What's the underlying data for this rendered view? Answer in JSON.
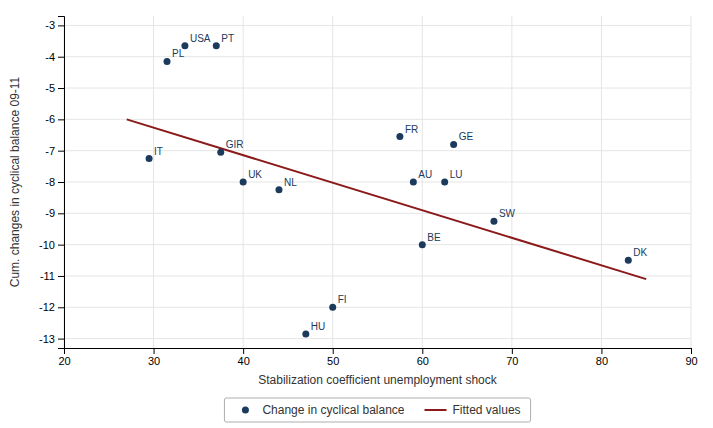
{
  "chart_data": {
    "type": "scatter",
    "xlabel": "Stabilization coefficient unemployment shock",
    "ylabel": "Cum. changes in cyclical balance 09-11",
    "series": [
      {
        "name": "Change in cyclical balance",
        "type": "scatter",
        "marker": "circle",
        "color": "#1b3a5c",
        "labels": [
          "USA",
          "PT",
          "PL",
          "IT",
          "GIR",
          "FR",
          "GE",
          "UK",
          "NL",
          "AU",
          "LU",
          "SW",
          "BE",
          "DK",
          "FI",
          "HU"
        ],
        "x": [
          33.5,
          37.0,
          31.5,
          29.5,
          37.5,
          57.5,
          63.5,
          40.0,
          44.0,
          59.0,
          62.5,
          68.0,
          60.0,
          83.0,
          50.0,
          47.0
        ],
        "values": [
          -3.65,
          -3.65,
          -4.15,
          -7.25,
          -7.05,
          -6.55,
          -6.8,
          -8.0,
          -8.25,
          -8.0,
          -8.0,
          -9.25,
          -10.0,
          -10.5,
          -12.0,
          -12.85
        ]
      },
      {
        "name": "Fitted values",
        "type": "line",
        "line_style": "solid",
        "color": "#8b1a1a",
        "x": [
          27,
          85
        ],
        "values": [
          -6.0,
          -11.1
        ]
      }
    ],
    "xlim": [
      20,
      90
    ],
    "ylim": [
      -13.3,
      -2.7
    ],
    "xticks": [
      20,
      30,
      40,
      50,
      60,
      70,
      80,
      90
    ],
    "yticks": [
      -13,
      -12,
      -11,
      -10,
      -9,
      -8,
      -7,
      -6,
      -5,
      -4,
      -3
    ],
    "grid": true,
    "legend": "bottom"
  }
}
